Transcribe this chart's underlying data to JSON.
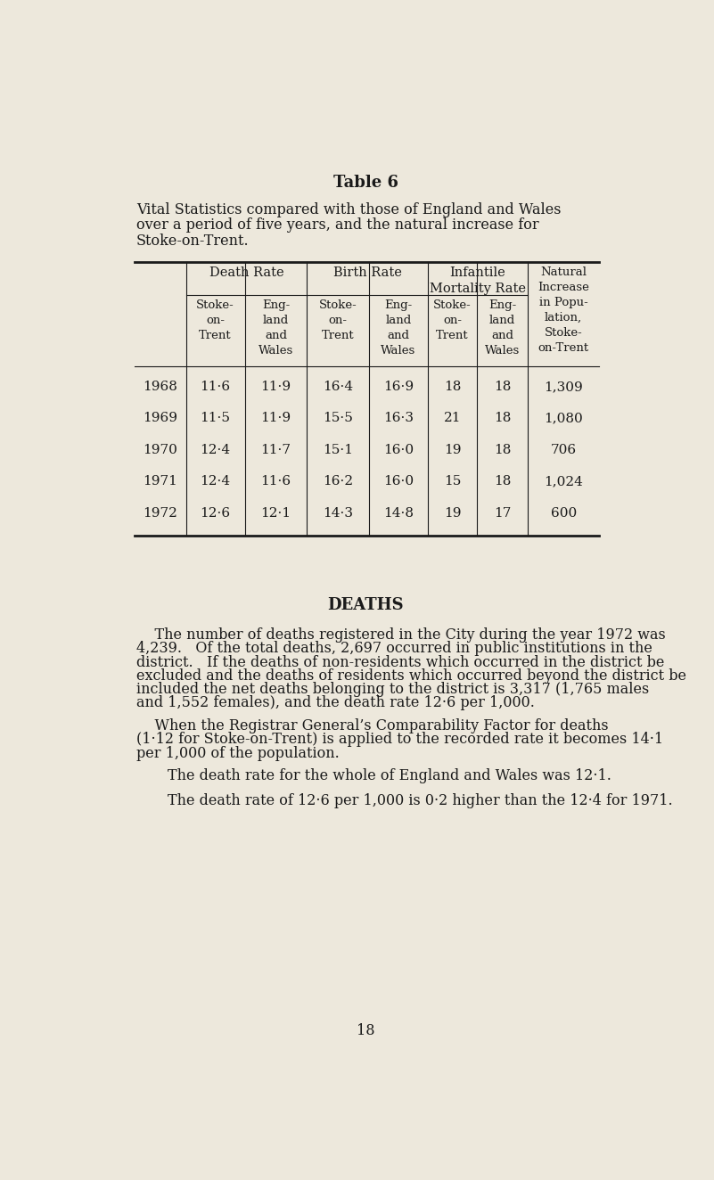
{
  "bg_color": "#ede8dc",
  "text_color": "#1a1a1a",
  "title": "Table 6",
  "subtitle_lines": [
    "Vital Statistics compared with those of England and Wales",
    "over a period of five years, and the natural increase for",
    "Stoke-on-Trent."
  ],
  "table": {
    "rows": [
      [
        "1968",
        "11·6",
        "11·9",
        "16·4",
        "16·9",
        "18",
        "18",
        "1,309"
      ],
      [
        "1969",
        "11·5",
        "11·9",
        "15·5",
        "16·3",
        "21",
        "18",
        "1,080"
      ],
      [
        "1970",
        "12·4",
        "11·7",
        "15·1",
        "16·0",
        "19",
        "18",
        "706"
      ],
      [
        "1971",
        "12·4",
        "11·6",
        "16·2",
        "16·0",
        "15",
        "18",
        "1,024"
      ],
      [
        "1972",
        "12·6",
        "12·1",
        "14·3",
        "14·8",
        "19",
        "17",
        "600"
      ]
    ]
  },
  "section_title": "DEATHS",
  "para1_lines": [
    "    The number of deaths registered in the City during the year 1972 was",
    "4,239.   Of the total deaths, 2,697 occurred in public institutions in the",
    "district.   If the deaths of non-residents which occurred in the district be",
    "excluded and the deaths of residents which occurred beyond the district be",
    "included the net deaths belonging to the district is 3,317 (1,765 males",
    "and 1,552 females), and the death rate 12·6 per 1,000."
  ],
  "para2_lines": [
    "    When the Registrar General’s Comparability Factor for deaths",
    "(1·12 for Stoke-on-Trent) is applied to the recorded rate it becomes 14·1",
    "per 1,000 of the population."
  ],
  "para3": "    The death rate for the whole of England and Wales was 12·1.",
  "para4": "    The death rate of 12·6 per 1,000 is 0·2 higher than the 12·4 for 1971.",
  "page_number": "18"
}
